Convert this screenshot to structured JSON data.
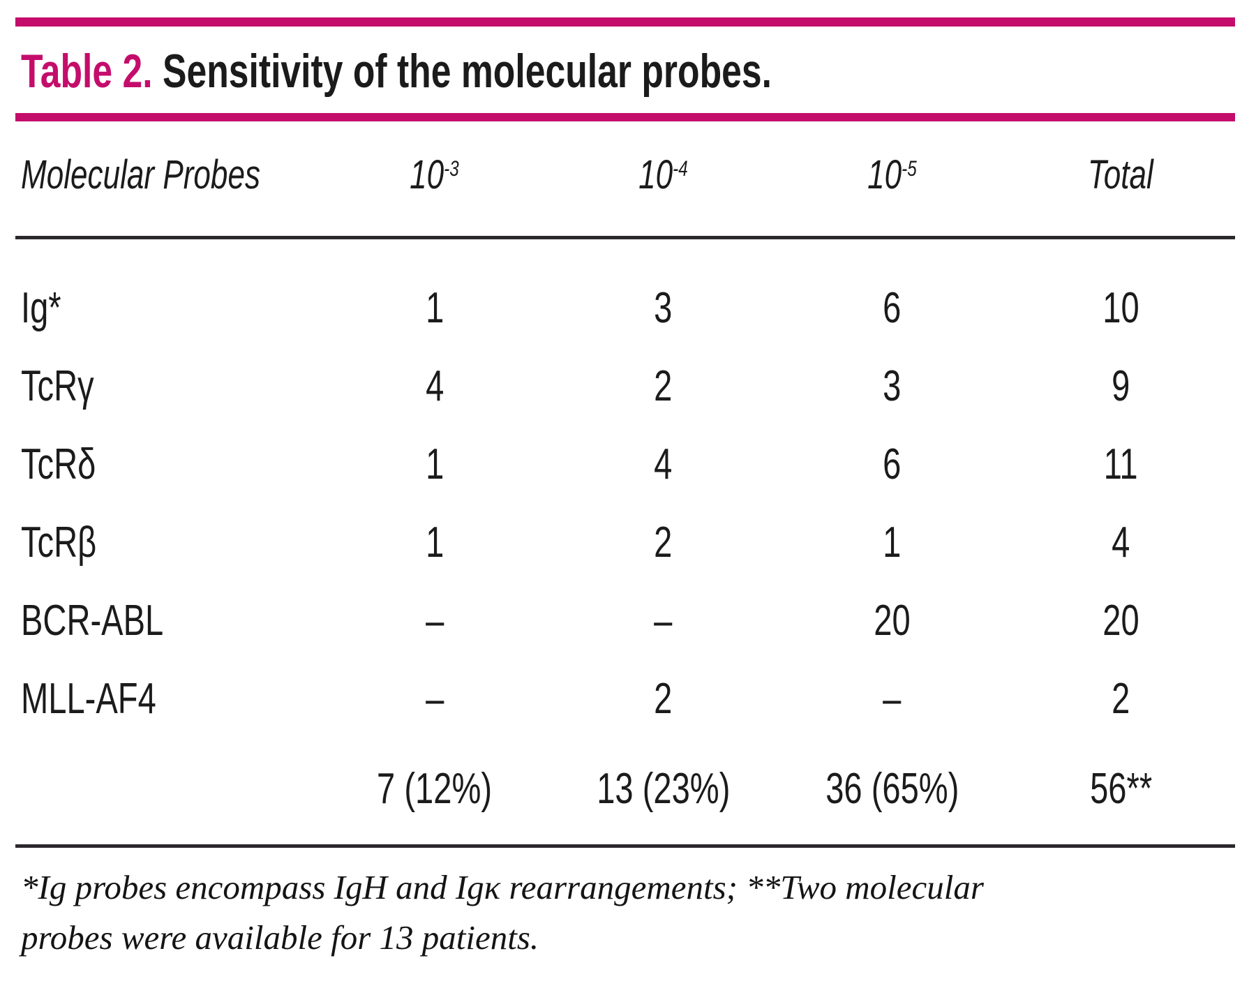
{
  "title": {
    "label": "Table 2.",
    "text": "Sensitivity of the molecular probes."
  },
  "table": {
    "header": {
      "probe_col": "Molecular Probes",
      "dilutions": [
        {
          "base": "10",
          "sup": "-3"
        },
        {
          "base": "10",
          "sup": "-4"
        },
        {
          "base": "10",
          "sup": "-5"
        }
      ],
      "total_col": "Total"
    },
    "rows": [
      {
        "probe": "Ig*",
        "values": [
          "1",
          "3",
          "6",
          "10"
        ]
      },
      {
        "probe": "TcRγ",
        "values": [
          "4",
          "2",
          "3",
          "9"
        ]
      },
      {
        "probe": "TcRδ",
        "values": [
          "1",
          "4",
          "6",
          "11"
        ]
      },
      {
        "probe": "TcRβ",
        "values": [
          "1",
          "2",
          "1",
          "4"
        ]
      },
      {
        "probe": "BCR-ABL",
        "values": [
          "–",
          "–",
          "20",
          "20"
        ]
      },
      {
        "probe": "MLL-AF4",
        "values": [
          "–",
          "2",
          "–",
          "2"
        ]
      }
    ],
    "summary": [
      "7 (12%)",
      "13 (23%)",
      "36 (65%)",
      "56**"
    ]
  },
  "footnote": "*Ig probes encompass IgH and Igκ rearrangements; **Two molecular probes were available for 13 patients.",
  "colors": {
    "accent": "#c40d6b"
  }
}
